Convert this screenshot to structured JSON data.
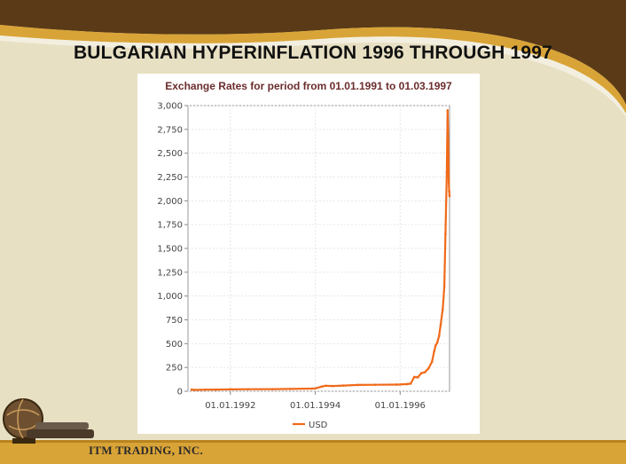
{
  "slide": {
    "title": "BULGARIAN HYPERINFLATION 1996 THROUGH 1997",
    "footer": "ITM TRADING, INC."
  },
  "colors": {
    "background": "#e8e0c3",
    "brown_band": "#5a3a17",
    "gold_stripe": "#d9a437",
    "series": "#f06a1a",
    "chart_title": "#6b2c2c"
  },
  "icons": [
    "globe-icon"
  ],
  "chart_data": {
    "type": "line",
    "title": "Exchange Rates for period from 01.01.1991 to 01.03.1997",
    "xlabel": "",
    "ylabel": "",
    "x_start": "1991-01-01",
    "x_end": "1997-03-01",
    "xlim": [
      "1991-01-01",
      "1997-03-01"
    ],
    "ylim": [
      0,
      3000
    ],
    "y_ticks": [
      0,
      250,
      500,
      750,
      1000,
      1250,
      1500,
      1750,
      2000,
      2250,
      2500,
      2750,
      3000
    ],
    "y_tick_labels": [
      "0",
      "250",
      "500",
      "750",
      "1,000",
      "1,250",
      "1,500",
      "1,750",
      "2,000",
      "2,250",
      "2,500",
      "2,750",
      "3,000"
    ],
    "x_ticks": [
      "1992-01-01",
      "1994-01-01",
      "1996-01-01"
    ],
    "x_tick_labels": [
      "01.01.1992",
      "01.01.1994",
      "01.01.1996"
    ],
    "grid": true,
    "legend_position": "bottom",
    "series": [
      {
        "name": "USD",
        "color": "#f06a1a",
        "x": [
          "1991-02-01",
          "1991-03-01",
          "1991-06-01",
          "1991-09-01",
          "1992-01-01",
          "1992-06-01",
          "1993-01-01",
          "1993-06-01",
          "1993-12-01",
          "1994-01-01",
          "1994-03-01",
          "1994-04-01",
          "1994-06-01",
          "1994-09-01",
          "1995-01-01",
          "1995-06-01",
          "1995-12-01",
          "1996-01-01",
          "1996-03-01",
          "1996-04-01",
          "1996-05-01",
          "1996-06-01",
          "1996-07-01",
          "1996-08-01",
          "1996-09-01",
          "1996-10-01",
          "1996-10-20",
          "1996-11-01",
          "1996-11-15",
          "1996-12-01",
          "1996-12-15",
          "1997-01-01",
          "1997-01-15",
          "1997-01-25",
          "1997-02-05",
          "1997-02-12",
          "1997-02-18",
          "1997-02-22",
          "1997-02-26",
          "1997-03-01"
        ],
        "values": [
          18,
          14,
          17,
          18,
          20,
          21,
          22,
          24,
          28,
          30,
          50,
          58,
          55,
          60,
          66,
          68,
          70,
          71,
          75,
          80,
          150,
          145,
          190,
          200,
          240,
          310,
          420,
          480,
          510,
          580,
          700,
          860,
          1100,
          1650,
          2300,
          2950,
          2600,
          2200,
          2100,
          2050
        ]
      }
    ]
  }
}
